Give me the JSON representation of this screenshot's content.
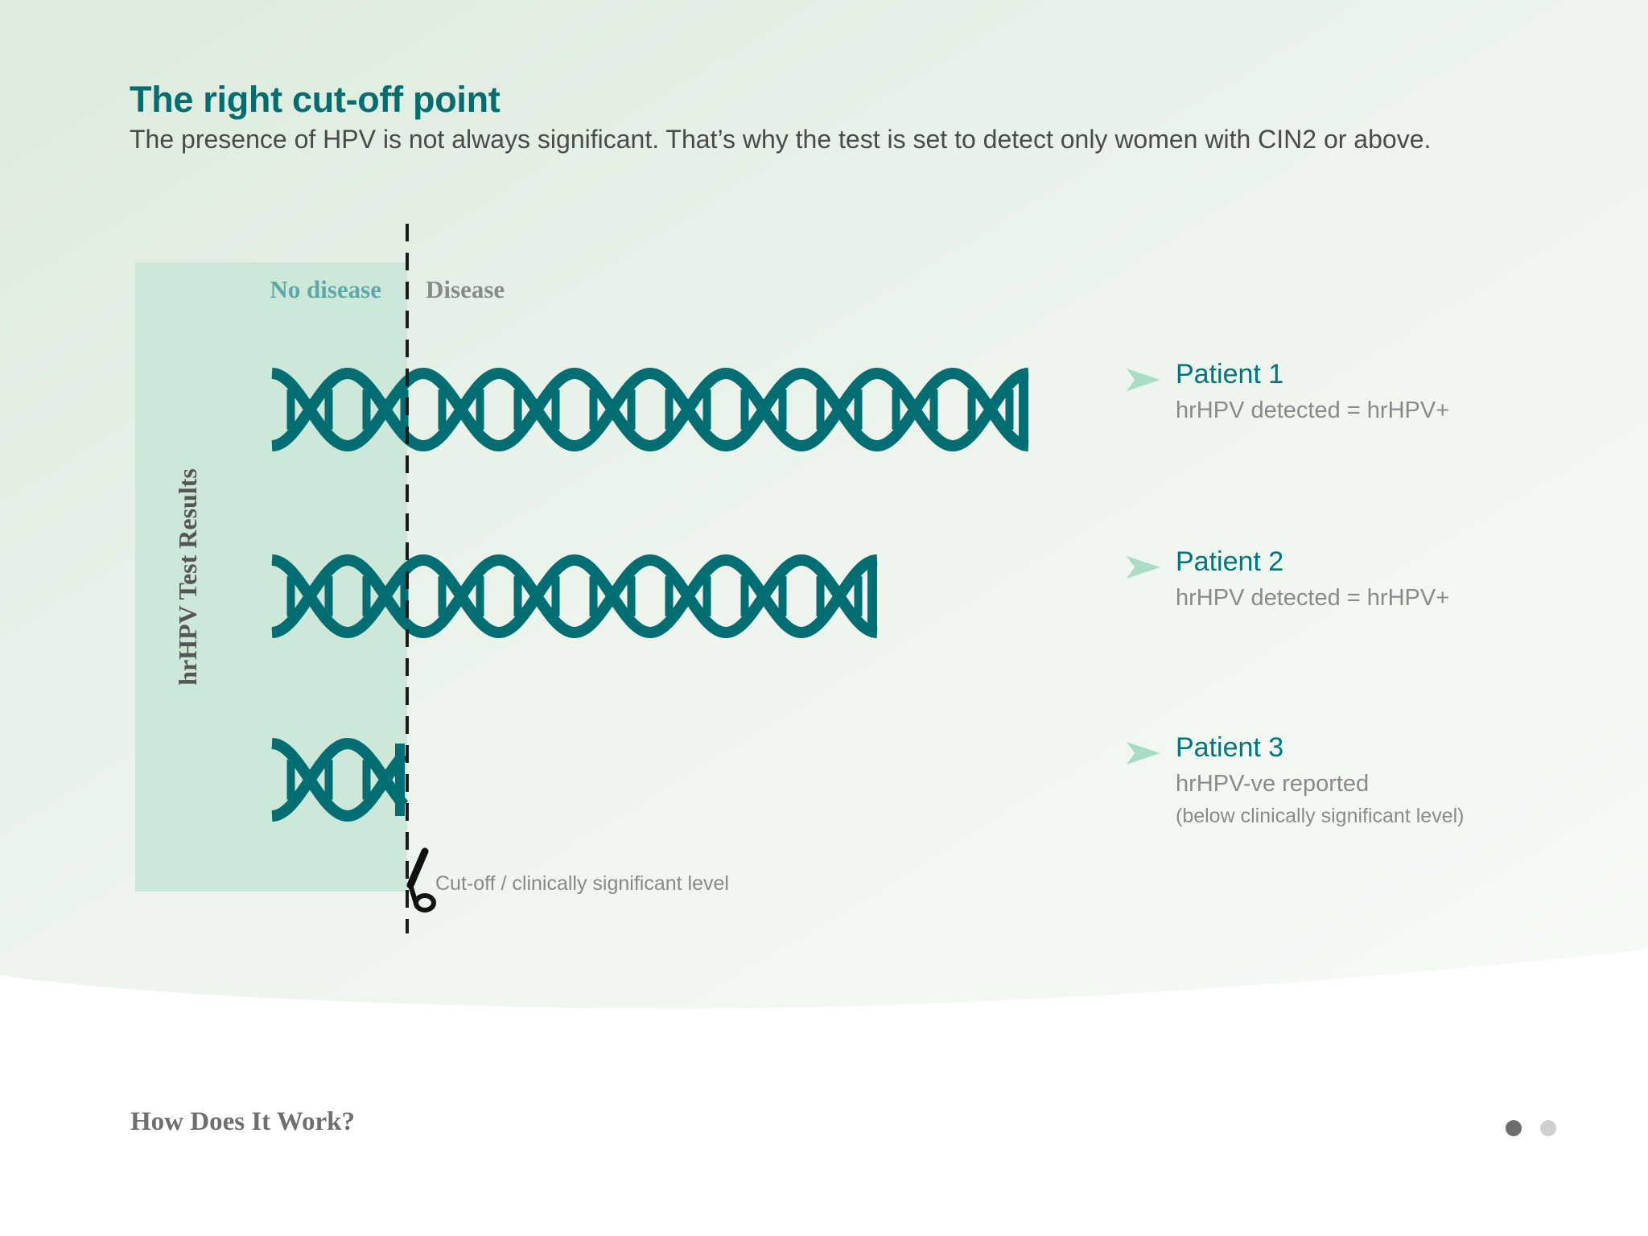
{
  "header": {
    "title": "The right cut-off point",
    "subtitle": "The presence of HPV is not always significant. That’s why the test is set to detect only women with CIN2 or above."
  },
  "diagram": {
    "zone_left_label": "No disease",
    "zone_right_label": "Disease",
    "axis_label": "hrHPV Test Results",
    "cutoff_label": "Cut-off / clinically significant level",
    "icons": [
      "dna-helix-icon",
      "scissors-icon",
      "arrow-icon"
    ],
    "colors": {
      "dna": "#006e72",
      "no_disease_zone": "#cde8d8",
      "no_disease_label": "#5ea8a8",
      "disease_label": "#8a8a8a",
      "arrow": "#a9dcc9",
      "patient_name": "#00757a"
    }
  },
  "patients": [
    {
      "name": "Patient 1",
      "result": "hrHPV detected = hrHPV+",
      "note": "",
      "dna_turns": 5
    },
    {
      "name": "Patient 2",
      "result": "hrHPV detected = hrHPV+",
      "note": "",
      "dna_turns": 4
    },
    {
      "name": "Patient 3",
      "result": "hrHPV-ve reported",
      "note": "(below clinically significant level)",
      "dna_turns": 1
    }
  ],
  "footer": {
    "section_title": "How Does It Work?",
    "pagination": {
      "total": 2,
      "current": 1
    }
  }
}
